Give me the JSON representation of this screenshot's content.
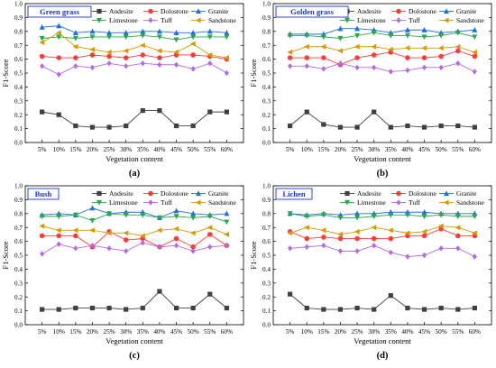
{
  "series_styles": [
    {
      "name": "Andesite",
      "color": "#404040",
      "marker": "square"
    },
    {
      "name": "Dolostone",
      "color": "#ff3b3b",
      "marker": "circle"
    },
    {
      "name": "Granite",
      "color": "#1f6fe0",
      "marker": "triangle-up"
    },
    {
      "name": "Limestone",
      "color": "#2aa84a",
      "marker": "triangle-down"
    },
    {
      "name": "Tuff",
      "color": "#b46ae0",
      "marker": "diamond"
    },
    {
      "name": "Sandstone",
      "color": "#d49a00",
      "marker": "triangle-left"
    }
  ],
  "chart_data": [
    {
      "type": "line",
      "panel_label": "(a)",
      "inset_title": "Green grass",
      "xlabel": "Vegetation content",
      "ylabel": "F1-Score",
      "ylim": [
        0.0,
        1.0
      ],
      "yticks": [
        "0.0",
        "0.1",
        "0.2",
        "0.3",
        "0.4",
        "0.5",
        "0.6",
        "0.7",
        "0.8",
        "0.9",
        "1.0"
      ],
      "categories": [
        "5%",
        "10%",
        "15%",
        "20%",
        "25%",
        "30%",
        "35%",
        "40%",
        "45%",
        "50%",
        "55%",
        "60%"
      ],
      "legend_position": "top",
      "series": [
        {
          "name": "Andesite",
          "values": [
            0.22,
            0.2,
            0.12,
            0.11,
            0.11,
            0.12,
            0.23,
            0.23,
            0.12,
            0.12,
            0.22,
            0.22
          ]
        },
        {
          "name": "Dolostone",
          "values": [
            0.62,
            0.61,
            0.61,
            0.63,
            0.62,
            0.61,
            0.63,
            0.61,
            0.63,
            0.63,
            0.62,
            0.6
          ]
        },
        {
          "name": "Granite",
          "values": [
            0.83,
            0.84,
            0.79,
            0.8,
            0.79,
            0.79,
            0.8,
            0.8,
            0.79,
            0.79,
            0.8,
            0.79
          ]
        },
        {
          "name": "Limestone",
          "values": [
            0.75,
            0.76,
            0.75,
            0.76,
            0.76,
            0.76,
            0.77,
            0.76,
            0.74,
            0.76,
            0.76,
            0.76
          ]
        },
        {
          "name": "Tuff",
          "values": [
            0.55,
            0.49,
            0.55,
            0.54,
            0.57,
            0.55,
            0.57,
            0.56,
            0.56,
            0.53,
            0.57,
            0.5
          ]
        },
        {
          "name": "Sandstone",
          "values": [
            0.72,
            0.79,
            0.69,
            0.67,
            0.65,
            0.66,
            0.7,
            0.66,
            0.65,
            0.71,
            0.63,
            0.61
          ]
        }
      ]
    },
    {
      "type": "line",
      "panel_label": "(b)",
      "inset_title": "Golden grass",
      "xlabel": "Vegetation content",
      "ylabel": "F1-Score",
      "ylim": [
        0.0,
        1.0
      ],
      "yticks": [
        "0.0",
        "0.1",
        "0.2",
        "0.3",
        "0.4",
        "0.5",
        "0.6",
        "0.7",
        "0.8",
        "0.9",
        "1.0"
      ],
      "categories": [
        "5%",
        "10%",
        "15%",
        "20%",
        "25%",
        "30%",
        "35%",
        "40%",
        "45%",
        "50%",
        "55%",
        "60%"
      ],
      "legend_position": "top",
      "series": [
        {
          "name": "Andesite",
          "values": [
            0.12,
            0.22,
            0.13,
            0.11,
            0.11,
            0.22,
            0.11,
            0.12,
            0.11,
            0.12,
            0.12,
            0.11
          ]
        },
        {
          "name": "Dolostone",
          "values": [
            0.61,
            0.61,
            0.61,
            0.56,
            0.61,
            0.63,
            0.65,
            0.61,
            0.61,
            0.62,
            0.66,
            0.62
          ]
        },
        {
          "name": "Granite",
          "values": [
            0.78,
            0.78,
            0.78,
            0.82,
            0.82,
            0.81,
            0.79,
            0.81,
            0.81,
            0.79,
            0.8,
            0.81
          ]
        },
        {
          "name": "Limestone",
          "values": [
            0.77,
            0.77,
            0.76,
            0.75,
            0.77,
            0.79,
            0.77,
            0.77,
            0.76,
            0.77,
            0.79,
            0.76
          ]
        },
        {
          "name": "Tuff",
          "values": [
            0.55,
            0.55,
            0.53,
            0.57,
            0.54,
            0.54,
            0.51,
            0.52,
            0.54,
            0.54,
            0.57,
            0.51
          ]
        },
        {
          "name": "Sandstone",
          "values": [
            0.65,
            0.69,
            0.69,
            0.66,
            0.69,
            0.69,
            0.67,
            0.68,
            0.68,
            0.68,
            0.69,
            0.65
          ]
        }
      ]
    },
    {
      "type": "line",
      "panel_label": "(c)",
      "inset_title": "Bush",
      "xlabel": "Vegetation content",
      "ylabel": "F1-Score",
      "ylim": [
        0.0,
        1.0
      ],
      "yticks": [
        "0.0",
        "0.1",
        "0.2",
        "0.3",
        "0.4",
        "0.5",
        "0.6",
        "0.7",
        "0.8",
        "0.9",
        "1.0"
      ],
      "categories": [
        "5%",
        "10%",
        "15%",
        "20%",
        "25%",
        "30%",
        "35%",
        "40%",
        "45%",
        "50%",
        "55%",
        "60%"
      ],
      "legend_position": "top",
      "series": [
        {
          "name": "Andesite",
          "values": [
            0.11,
            0.11,
            0.12,
            0.12,
            0.12,
            0.11,
            0.12,
            0.24,
            0.12,
            0.12,
            0.22,
            0.12
          ]
        },
        {
          "name": "Dolostone",
          "values": [
            0.64,
            0.64,
            0.64,
            0.56,
            0.67,
            0.61,
            0.62,
            0.56,
            0.62,
            0.56,
            0.65,
            0.57
          ]
        },
        {
          "name": "Granite",
          "values": [
            0.79,
            0.8,
            0.79,
            0.84,
            0.8,
            0.81,
            0.81,
            0.77,
            0.82,
            0.8,
            0.79,
            0.8
          ]
        },
        {
          "name": "Limestone",
          "values": [
            0.78,
            0.78,
            0.79,
            0.75,
            0.8,
            0.79,
            0.79,
            0.77,
            0.78,
            0.77,
            0.78,
            0.74
          ]
        },
        {
          "name": "Tuff",
          "values": [
            0.51,
            0.58,
            0.55,
            0.57,
            0.55,
            0.53,
            0.59,
            0.56,
            0.57,
            0.53,
            0.56,
            0.57
          ]
        },
        {
          "name": "Sandstone",
          "values": [
            0.71,
            0.68,
            0.68,
            0.68,
            0.66,
            0.66,
            0.64,
            0.68,
            0.69,
            0.66,
            0.7,
            0.65
          ]
        }
      ]
    },
    {
      "type": "line",
      "panel_label": "(d)",
      "inset_title": "Lichen",
      "xlabel": "Vegetation content",
      "ylabel": "F1-Score",
      "ylim": [
        0.0,
        1.0
      ],
      "yticks": [
        "0.0",
        "0.1",
        "0.2",
        "0.3",
        "0.4",
        "0.5",
        "0.6",
        "0.7",
        "0.8",
        "0.9",
        "1.0"
      ],
      "categories": [
        "5%",
        "10%",
        "15%",
        "20%",
        "25%",
        "30%",
        "35%",
        "40%",
        "45%",
        "50%",
        "55%",
        "60%"
      ],
      "legend_position": "top",
      "series": [
        {
          "name": "Andesite",
          "values": [
            0.22,
            0.12,
            0.11,
            0.11,
            0.12,
            0.11,
            0.21,
            0.12,
            0.11,
            0.12,
            0.11,
            0.12
          ]
        },
        {
          "name": "Dolostone",
          "values": [
            0.67,
            0.62,
            0.63,
            0.62,
            0.62,
            0.62,
            0.62,
            0.64,
            0.64,
            0.69,
            0.64,
            0.64
          ]
        },
        {
          "name": "Granite",
          "values": [
            0.8,
            0.79,
            0.8,
            0.79,
            0.8,
            0.8,
            0.81,
            0.81,
            0.81,
            0.8,
            0.8,
            0.8
          ]
        },
        {
          "name": "Limestone",
          "values": [
            0.8,
            0.78,
            0.79,
            0.77,
            0.77,
            0.78,
            0.79,
            0.79,
            0.78,
            0.79,
            0.78,
            0.78
          ]
        },
        {
          "name": "Tuff",
          "values": [
            0.55,
            0.56,
            0.57,
            0.53,
            0.53,
            0.57,
            0.52,
            0.49,
            0.5,
            0.55,
            0.55,
            0.49
          ]
        },
        {
          "name": "Sandstone",
          "values": [
            0.66,
            0.7,
            0.68,
            0.65,
            0.67,
            0.7,
            0.68,
            0.66,
            0.67,
            0.71,
            0.7,
            0.66
          ]
        }
      ]
    }
  ]
}
